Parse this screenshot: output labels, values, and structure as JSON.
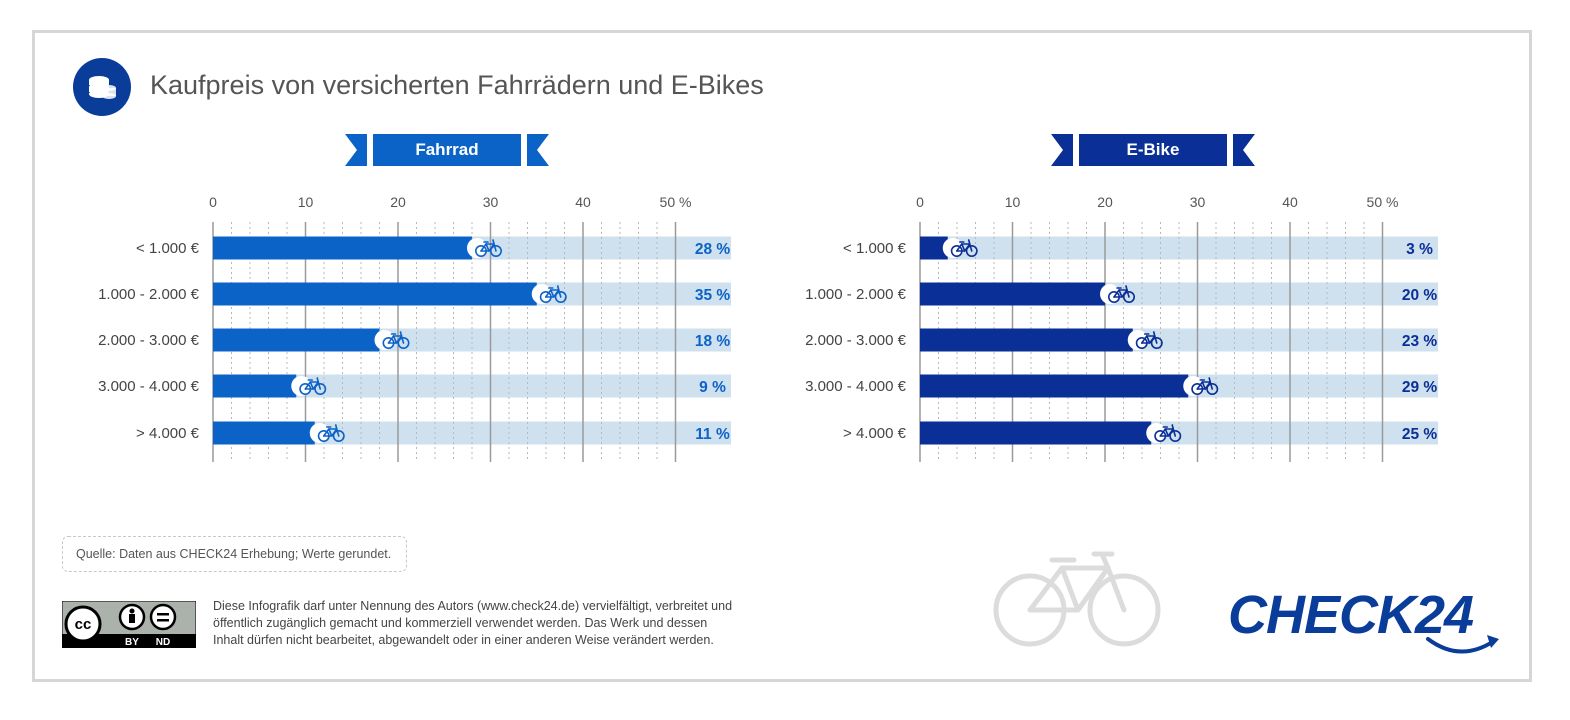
{
  "header": {
    "title": "Kaufpreis von versicherten Fahrrädern und E-Bikes",
    "icon": "coins-icon"
  },
  "colors": {
    "fahrrad": "#0b63c8",
    "ebike": "#0a2f96",
    "track": "#cfe0ef",
    "label_fahrrad": "#0b63c8",
    "label_ebike": "#0a2f96"
  },
  "chart_data": [
    {
      "type": "bar",
      "title": "Fahrrad",
      "orientation": "horizontal",
      "categories": [
        "< 1.000 €",
        "1.000 - 2.000 €",
        "2.000 - 3.000 €",
        "3.000 - 4.000 €",
        "> 4.000 €"
      ],
      "values": [
        28,
        35,
        18,
        9,
        11
      ],
      "value_labels": [
        "28 %",
        "35 %",
        "18 %",
        "9 %",
        "11 %"
      ],
      "xlim": [
        0,
        50
      ],
      "xticks": [
        "0",
        "10",
        "20",
        "30",
        "40",
        "50 %"
      ],
      "grid": true
    },
    {
      "type": "bar",
      "title": "E-Bike",
      "orientation": "horizontal",
      "categories": [
        "< 1.000 €",
        "1.000 - 2.000 €",
        "2.000 - 3.000 €",
        "3.000 - 4.000 €",
        "> 4.000 €"
      ],
      "values": [
        3,
        20,
        23,
        29,
        25
      ],
      "value_labels": [
        "3 %",
        "20 %",
        "23 %",
        "29 %",
        "25 %"
      ],
      "xlim": [
        0,
        50
      ],
      "xticks": [
        "0",
        "10",
        "20",
        "30",
        "40",
        "50 %"
      ],
      "grid": true
    }
  ],
  "footer": {
    "source": "Quelle: Daten aus CHECK24 Erhebung; Werte gerundet.",
    "license_lines": [
      "Diese Infografik darf unter Nennung des Autors (www.check24.de) vervielfältigt, verbreitet und",
      "öffentlich zugänglich gemacht und kommerziell verwendet werden. Das Werk und dessen",
      "Inhalt dürfen nicht bearbeitet, abgewandelt oder in einer anderen Weise verändert werden."
    ],
    "cc_labels": [
      "cc",
      "BY",
      "ND"
    ],
    "logo_text": "CHECK24"
  }
}
